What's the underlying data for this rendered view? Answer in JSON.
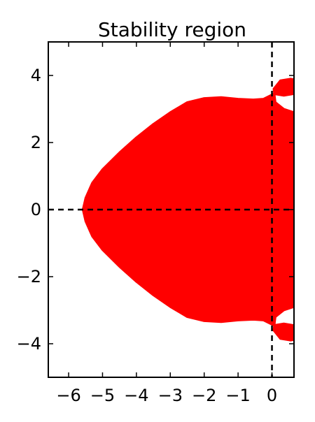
{
  "chart_data": {
    "type": "area",
    "title": "Stability region",
    "xlabel": "",
    "ylabel": "",
    "xlim": [
      -6.6,
      0.65
    ],
    "ylim": [
      -5,
      5
    ],
    "xticks": [
      -6,
      -5,
      -4,
      -3,
      -2,
      -1,
      0
    ],
    "yticks": [
      -4,
      -2,
      0,
      2,
      4
    ],
    "xtick_labels": [
      "−6",
      "−5",
      "−4",
      "−3",
      "−2",
      "−1",
      "0"
    ],
    "ytick_labels": [
      "−4",
      "−2",
      "0",
      "2",
      "4"
    ],
    "grid": false,
    "legend": "none",
    "reference_lines": [
      {
        "orientation": "horizontal",
        "value": 0,
        "style": "dashed"
      },
      {
        "orientation": "vertical",
        "value": 0,
        "style": "dashed"
      }
    ],
    "region_color": "#ff0000",
    "series": [
      {
        "fill": "#ff0000",
        "boundary_upper_half": [
          [
            0.65,
            0
          ],
          [
            0.65,
            2.9
          ],
          [
            0.35,
            3.0
          ],
          [
            0.1,
            3.2
          ],
          [
            0.05,
            3.6
          ],
          [
            0.25,
            3.85
          ],
          [
            0.55,
            3.9
          ],
          [
            0.65,
            3.88
          ],
          [
            0.65,
            3.45
          ],
          [
            0.35,
            3.4
          ],
          [
            0.05,
            3.45
          ],
          [
            -0.25,
            3.3
          ],
          [
            -0.55,
            3.28
          ],
          [
            -1.0,
            3.3
          ],
          [
            -1.5,
            3.35
          ],
          [
            -2.0,
            3.32
          ],
          [
            -2.5,
            3.2
          ],
          [
            -3.0,
            2.9
          ],
          [
            -3.5,
            2.55
          ],
          [
            -4.0,
            2.15
          ],
          [
            -4.5,
            1.7
          ],
          [
            -5.0,
            1.2
          ],
          [
            -5.3,
            0.8
          ],
          [
            -5.5,
            0.35
          ],
          [
            -5.58,
            0
          ]
        ]
      }
    ]
  }
}
